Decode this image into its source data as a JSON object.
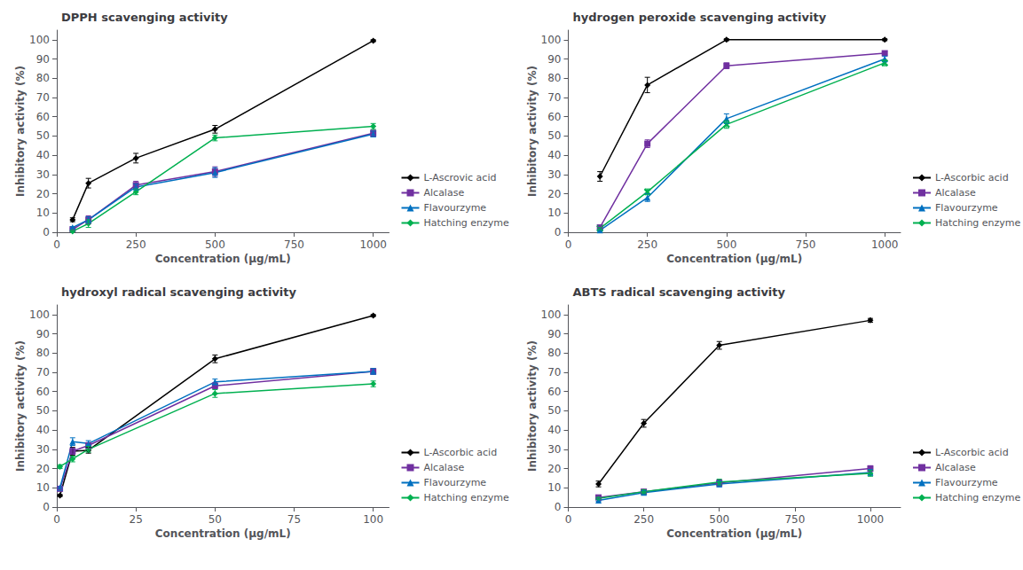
{
  "chart_data": [
    {
      "type": "line",
      "title": "DPPH scavenging activity",
      "xlabel": "Concentration (μg/mL)",
      "ylabel": "Inhibitory activity (%)",
      "xlim": [
        0,
        1050
      ],
      "ylim": [
        0,
        105
      ],
      "xticks": [
        0,
        250,
        500,
        750,
        1000
      ],
      "yticks": [
        0,
        10,
        20,
        30,
        40,
        50,
        60,
        70,
        80,
        90,
        100
      ],
      "grid": false,
      "legend": "lower right",
      "series": [
        {
          "name": "L-Ascrovic acid",
          "color": "#000000",
          "marker": "diamond",
          "x": [
            50,
            100,
            250,
            500,
            1000
          ],
          "values": [
            6.5,
            25.5,
            38.5,
            53.5,
            99.5
          ],
          "yerr": [
            1.0,
            2.5,
            2.5,
            2.0,
            0.5
          ]
        },
        {
          "name": "Alcalase",
          "color": "#7030a0",
          "marker": "square",
          "x": [
            50,
            100,
            250,
            500,
            1000
          ],
          "values": [
            1.5,
            6.5,
            24.5,
            31.5,
            51.5
          ],
          "yerr": [
            0.5,
            2.0,
            2.0,
            2.5,
            1.5
          ]
        },
        {
          "name": "Flavourzyme",
          "color": "#0070c0",
          "marker": "triangle",
          "x": [
            50,
            100,
            250,
            500,
            1000
          ],
          "values": [
            2.5,
            6.5,
            23.5,
            31.0,
            51.0
          ],
          "yerr": [
            0.5,
            1.5,
            1.5,
            2.5,
            1.5
          ]
        },
        {
          "name": "Hatching enzyme",
          "color": "#00b050",
          "marker": "diamond",
          "x": [
            50,
            100,
            250,
            500,
            1000
          ],
          "values": [
            0.5,
            4.5,
            21.0,
            49.0,
            55.0
          ],
          "yerr": [
            0.5,
            2.0,
            1.5,
            1.5,
            1.5
          ]
        }
      ]
    },
    {
      "type": "line",
      "title": "hydrogen peroxide scavenging activity",
      "xlabel": "Concentration (μg/mL)",
      "ylabel": "Inhibitory activity (%)",
      "xlim": [
        0,
        1050
      ],
      "ylim": [
        0,
        105
      ],
      "xticks": [
        0,
        250,
        500,
        750,
        1000
      ],
      "yticks": [
        0,
        10,
        20,
        30,
        40,
        50,
        60,
        70,
        80,
        90,
        100
      ],
      "grid": false,
      "legend": "lower right",
      "series": [
        {
          "name": "L-Ascorbic acid",
          "color": "#000000",
          "marker": "diamond",
          "x": [
            100,
            250,
            500,
            1000
          ],
          "values": [
            29.0,
            76.5,
            100.0,
            100.0
          ],
          "yerr": [
            2.5,
            4.0,
            0.5,
            0.5
          ]
        },
        {
          "name": "Alcalase",
          "color": "#7030a0",
          "marker": "square",
          "x": [
            100,
            250,
            500,
            1000
          ],
          "values": [
            2.5,
            46.0,
            86.5,
            93.0
          ],
          "yerr": [
            0.5,
            2.0,
            1.5,
            1.0
          ]
        },
        {
          "name": "Flavourzyme",
          "color": "#0070c0",
          "marker": "triangle",
          "x": [
            100,
            250,
            500,
            1000
          ],
          "values": [
            1.0,
            18.0,
            59.0,
            90.0
          ],
          "yerr": [
            0.5,
            2.0,
            2.5,
            1.5
          ]
        },
        {
          "name": "Hatching enzyme",
          "color": "#00b050",
          "marker": "x",
          "x": [
            100,
            250,
            500,
            1000
          ],
          "values": [
            2.0,
            21.0,
            56.0,
            88.0
          ],
          "yerr": [
            0.5,
            1.5,
            2.0,
            1.5
          ]
        }
      ]
    },
    {
      "type": "line",
      "title": "hydroxyl radical scavenging activity",
      "xlabel": "Concentration (μg/mL)",
      "ylabel": "Inhibitory activity (%)",
      "xlim": [
        0,
        105
      ],
      "ylim": [
        0,
        105
      ],
      "xticks": [
        0,
        25,
        50,
        75,
        100
      ],
      "yticks": [
        0,
        10,
        20,
        30,
        40,
        50,
        60,
        70,
        80,
        90,
        100
      ],
      "grid": false,
      "legend": "lower right",
      "series": [
        {
          "name": "L-Ascorbic acid",
          "color": "#000000",
          "marker": "diamond",
          "x": [
            1,
            5,
            10,
            50,
            100
          ],
          "values": [
            6.0,
            29.0,
            29.5,
            77.0,
            99.5
          ],
          "yerr": [
            0.5,
            2.0,
            1.5,
            2.0,
            0.5
          ]
        },
        {
          "name": "Alcalase",
          "color": "#7030a0",
          "marker": "square",
          "x": [
            1,
            5,
            10,
            50,
            100
          ],
          "values": [
            9.5,
            29.0,
            32.0,
            63.0,
            70.5
          ],
          "yerr": [
            0.5,
            1.5,
            1.5,
            1.5,
            1.5
          ]
        },
        {
          "name": "Flavourzyme",
          "color": "#0070c0",
          "marker": "triangle",
          "x": [
            1,
            5,
            10,
            50,
            100
          ],
          "values": [
            10.0,
            34.0,
            33.0,
            65.0,
            70.5
          ],
          "yerr": [
            0.5,
            2.0,
            1.5,
            1.5,
            1.5
          ]
        },
        {
          "name": "Hatching enzyme",
          "color": "#00b050",
          "marker": "diamond",
          "x": [
            1,
            5,
            10,
            50,
            100
          ],
          "values": [
            21.0,
            25.0,
            30.0,
            59.0,
            64.0
          ],
          "yerr": [
            1.0,
            1.5,
            1.5,
            2.0,
            1.5
          ]
        }
      ]
    },
    {
      "type": "line",
      "title": "ABTS radical scavenging activity",
      "xlabel": "Concentration (μg/mL)",
      "ylabel": "Inhibitory activity (%)",
      "xlim": [
        0,
        1100
      ],
      "ylim": [
        0,
        105
      ],
      "xticks": [
        0,
        250,
        500,
        750,
        1000
      ],
      "yticks": [
        0,
        10,
        20,
        30,
        40,
        50,
        60,
        70,
        80,
        90,
        100
      ],
      "grid": false,
      "legend": "lower right",
      "series": [
        {
          "name": "L-Ascorbic acid",
          "color": "#000000",
          "marker": "diamond",
          "x": [
            100,
            250,
            500,
            1000
          ],
          "values": [
            12.0,
            43.5,
            84.0,
            97.0
          ],
          "yerr": [
            1.5,
            2.0,
            2.0,
            1.0
          ]
        },
        {
          "name": "Alcalase",
          "color": "#7030a0",
          "marker": "square",
          "x": [
            100,
            250,
            500,
            1000
          ],
          "values": [
            5.0,
            8.0,
            12.5,
            20.0
          ],
          "yerr": [
            0.5,
            1.0,
            1.5,
            1.5
          ]
        },
        {
          "name": "Flavourzyme",
          "color": "#0070c0",
          "marker": "triangle",
          "x": [
            100,
            250,
            500,
            1000
          ],
          "values": [
            3.5,
            7.5,
            12.0,
            18.0
          ],
          "yerr": [
            0.5,
            1.0,
            1.5,
            1.5
          ]
        },
        {
          "name": "Hatching enzyme",
          "color": "#00b050",
          "marker": "diamond",
          "x": [
            100,
            250,
            500,
            1000
          ],
          "values": [
            4.5,
            8.0,
            13.0,
            17.5
          ],
          "yerr": [
            0.5,
            1.0,
            1.5,
            1.5
          ]
        }
      ]
    }
  ]
}
